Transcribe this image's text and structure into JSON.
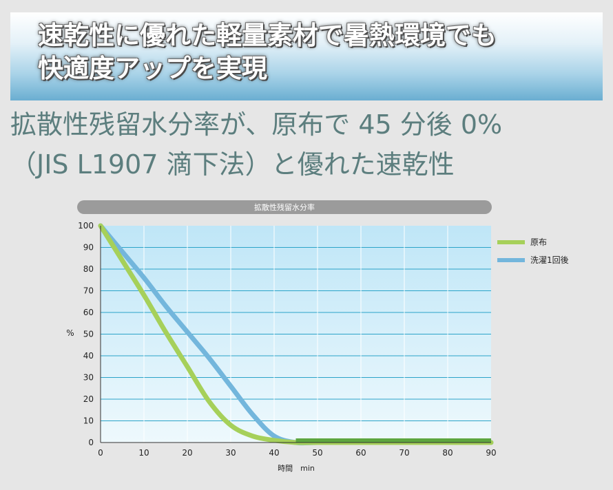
{
  "banner": {
    "title": "速乾性に優れた軽量素材で暑熱環境でも\n快適度アップを実現"
  },
  "subtitle": {
    "text": "拡散性残留水分率が、原布で 45 分後 0%\n（JIS L1907 滴下法）と優れた速乾性"
  },
  "colors": {
    "series_green": "#a6d05a",
    "series_green_dark": "#5da63f",
    "series_blue": "#73b6dc",
    "title_bar": "#9b9b9b",
    "grid": "#2aa3c8"
  },
  "chart_data": {
    "type": "line",
    "title": "拡散性残留水分率",
    "xlabel": "時間　min",
    "ylabel": "%",
    "xlim": [
      0,
      90
    ],
    "ylim": [
      0,
      100
    ],
    "xticks": [
      0,
      10,
      20,
      30,
      40,
      50,
      60,
      70,
      80,
      90
    ],
    "yticks": [
      0,
      10,
      20,
      30,
      40,
      50,
      60,
      70,
      80,
      90,
      100
    ],
    "grid": true,
    "legend_position": "right",
    "series": [
      {
        "name": "原布",
        "x": [
          0,
          5,
          10,
          15,
          20,
          25,
          30,
          35,
          40,
          45,
          50,
          60,
          70,
          80,
          90
        ],
        "y": [
          100,
          84,
          68,
          51,
          35,
          19,
          8,
          3,
          1,
          0,
          0,
          0,
          0,
          0,
          0
        ]
      },
      {
        "name": "洗濯1回後",
        "x": [
          0,
          5,
          10,
          15,
          20,
          25,
          30,
          35,
          40,
          45,
          50,
          60,
          70,
          80,
          90
        ],
        "y": [
          100,
          88,
          76,
          63,
          51,
          39,
          26,
          13,
          3,
          0,
          0,
          0,
          0,
          0,
          0
        ]
      }
    ]
  }
}
